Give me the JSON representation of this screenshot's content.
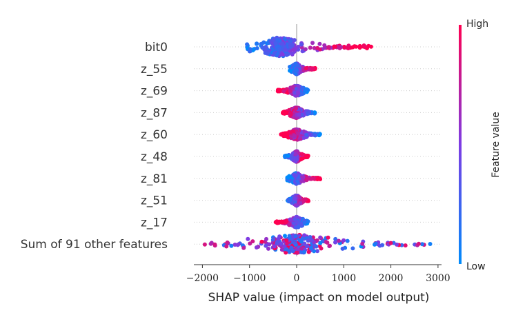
{
  "chart_data": {
    "type": "scatter",
    "subtype": "shap-beeswarm",
    "title": "",
    "xlabel": "SHAP value (impact on model output)",
    "xlim": [
      -2200,
      3100
    ],
    "xticks": [
      -2000,
      -1000,
      0,
      1000,
      2000,
      3000
    ],
    "xtick_labels": [
      "−2000",
      "−1000",
      "0",
      "1000",
      "2000",
      "3000"
    ],
    "grid": false,
    "zero_line": true,
    "features": [
      {
        "name": "bit0",
        "min": -1100,
        "max": 1600,
        "density_peak": -350,
        "spread": 14,
        "color_bias": "high-right"
      },
      {
        "name": "z_55",
        "min": -150,
        "max": 400,
        "density_peak": 0,
        "spread": 8,
        "color_bias": "high-right"
      },
      {
        "name": "z_69",
        "min": -400,
        "max": 250,
        "density_peak": 0,
        "spread": 8,
        "color_bias": "high-left"
      },
      {
        "name": "z_87",
        "min": -300,
        "max": 400,
        "density_peak": 0,
        "spread": 8,
        "color_bias": "high-left"
      },
      {
        "name": "z_60",
        "min": -350,
        "max": 500,
        "density_peak": 0,
        "spread": 8,
        "color_bias": "high-left"
      },
      {
        "name": "z_48",
        "min": -250,
        "max": 250,
        "density_peak": 0,
        "spread": 8,
        "color_bias": "high-right"
      },
      {
        "name": "z_81",
        "min": -200,
        "max": 500,
        "density_peak": 0,
        "spread": 8,
        "color_bias": "high-right"
      },
      {
        "name": "z_51",
        "min": -200,
        "max": 250,
        "density_peak": 0,
        "spread": 8,
        "color_bias": "high-right"
      },
      {
        "name": "z_17",
        "min": -450,
        "max": 250,
        "density_peak": 0,
        "spread": 8,
        "color_bias": "high-left"
      },
      {
        "name": "Sum of 91 other features",
        "min": -1950,
        "max": 2900,
        "density_peak": 0,
        "spread": 14,
        "color_bias": "mixed"
      }
    ],
    "colorbar": {
      "label": "Feature value",
      "high_label": "High",
      "low_label": "Low",
      "high_color": "#ff0051",
      "low_color": "#008bfb"
    }
  }
}
